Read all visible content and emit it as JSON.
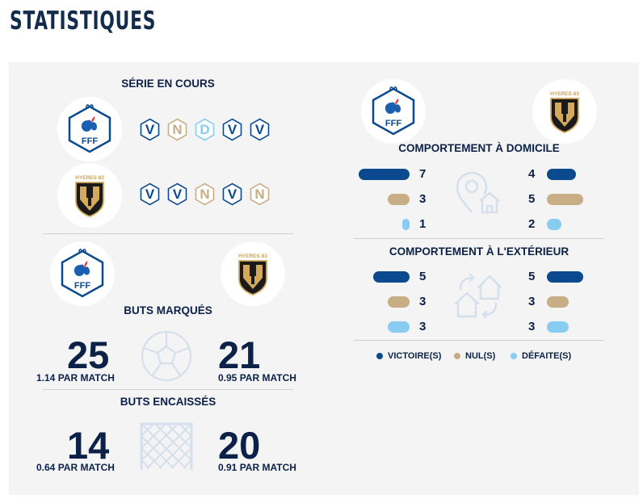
{
  "page": {
    "title": "STATISTIQUES"
  },
  "colors": {
    "victoire": "#0b4a8f",
    "nul": "#c8ae84",
    "defaite": "#88ccf1"
  },
  "teams": [
    {
      "name": "FFF",
      "logo": "fff-logo"
    },
    {
      "name": "HYERES 83",
      "logo": "hyeres-logo"
    }
  ],
  "serie": {
    "title": "SÉRIE EN COURS",
    "team1": [
      "V",
      "N",
      "D",
      "V",
      "V"
    ],
    "team2": [
      "V",
      "V",
      "N",
      "V",
      "N"
    ]
  },
  "buts_marques": {
    "title": "BUTS MARQUÉS",
    "team1": {
      "value": "25",
      "per_match": "1.14 PAR MATCH"
    },
    "team2": {
      "value": "21",
      "per_match": "0.95 PAR MATCH"
    }
  },
  "buts_encaisses": {
    "title": "BUTS ENCAISSÉS",
    "team1": {
      "value": "14",
      "per_match": "0.64 PAR MATCH"
    },
    "team2": {
      "value": "20",
      "per_match": "0.91 PAR MATCH"
    }
  },
  "domicile": {
    "title": "COMPORTEMENT À DOMICILE",
    "team1": {
      "victoires": "7",
      "nuls": "3",
      "defaites": "1"
    },
    "team2": {
      "victoires": "4",
      "nuls": "5",
      "defaites": "2"
    }
  },
  "exterieur": {
    "title": "COMPORTEMENT À L'EXTÉRIEUR",
    "team1": {
      "victoires": "5",
      "nuls": "3",
      "defaites": "3"
    },
    "team2": {
      "victoires": "5",
      "nuls": "3",
      "defaites": "3"
    }
  },
  "legend": {
    "victoire": "VICTOIRE(S)",
    "nul": "NUL(S)",
    "defaite": "DÉFAITE(S)"
  }
}
